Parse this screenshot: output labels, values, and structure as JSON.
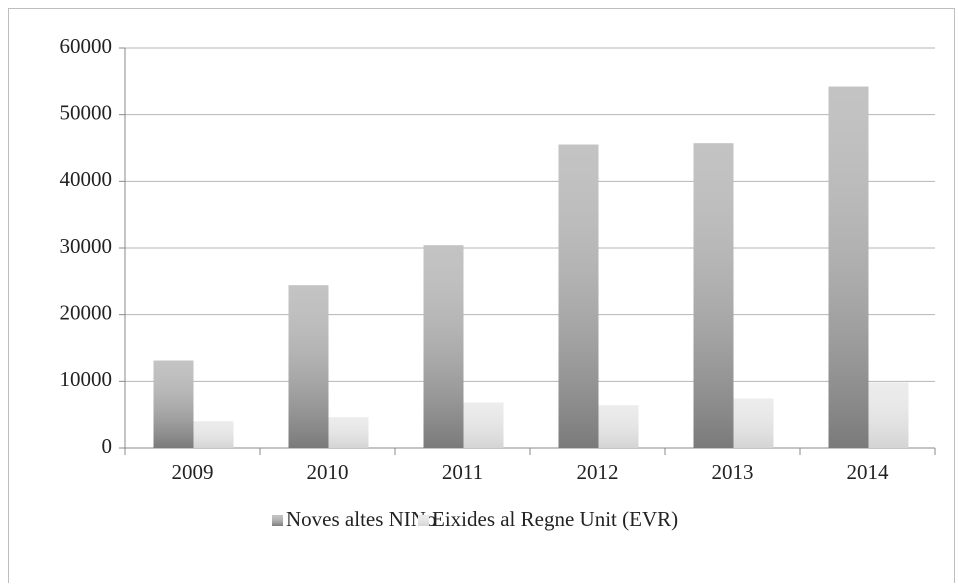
{
  "chart_data": {
    "type": "bar",
    "categories": [
      "2009",
      "2010",
      "2011",
      "2012",
      "2013",
      "2014"
    ],
    "series": [
      {
        "name": "Noves altes NINo",
        "color": "#7a7a7a",
        "values": [
          13100,
          24400,
          30400,
          45500,
          45700,
          54200
        ]
      },
      {
        "name": "Eixides al Regne Unit (EVR)",
        "color": "#d4d4d4",
        "values": [
          4000,
          4600,
          6800,
          6400,
          7400,
          9800
        ]
      }
    ],
    "ylim": [
      0,
      60000
    ],
    "yticks": [
      0,
      10000,
      20000,
      30000,
      40000,
      50000,
      60000
    ],
    "grid": true,
    "legend": "bottom"
  }
}
